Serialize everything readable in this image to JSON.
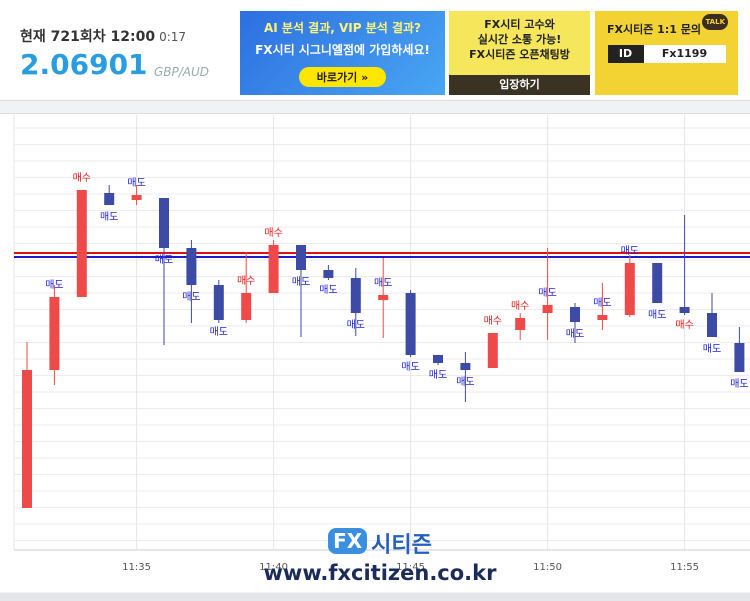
{
  "header": {
    "round": "현재 721회차 12:00",
    "timer": "0:17",
    "price": "2.06901",
    "pair": "GBP/AUD"
  },
  "banners": [
    {
      "lines": [
        "AI 분석 결과, VIP 분석 결과?",
        "FX시티 시그니엘점에 가입하세요!"
      ],
      "button": "바로가기 »"
    },
    {
      "lines": [
        "FX시티 고수와",
        "실시간 소통 가능!",
        "FX시티즌 오픈채팅방"
      ],
      "button": "입장하기"
    },
    {
      "lines": [
        "FX시티즌 1:1 문의"
      ],
      "id_label": "ID",
      "id_value": "Fx1199",
      "badge": "TALK"
    }
  ],
  "watermark": {
    "logo": "FX",
    "name": "시티즌",
    "url": "www.fxcitizen.co.kr"
  },
  "chart_data": {
    "type": "candlestick",
    "categories": [
      null,
      null,
      null,
      null,
      "11:35",
      null,
      null,
      null,
      null,
      "11:40",
      null,
      null,
      null,
      null,
      "11:45",
      null,
      null,
      null,
      null,
      "11:50",
      null,
      null,
      null,
      null,
      "11:55",
      null,
      null
    ],
    "open": [
      42,
      180,
      253,
      357,
      350,
      352,
      302,
      265,
      230,
      257,
      305,
      280,
      272,
      250,
      257,
      195,
      187,
      182,
      220,
      237,
      243,
      230,
      235,
      287,
      243,
      237,
      207
    ],
    "high": [
      208,
      265,
      360,
      365,
      365,
      352,
      310,
      270,
      298,
      310,
      305,
      285,
      282,
      292,
      260,
      195,
      198,
      217,
      237,
      302,
      247,
      267,
      295,
      287,
      335,
      257,
      223
    ],
    "low": [
      42,
      165,
      253,
      345,
      345,
      205,
      227,
      227,
      227,
      257,
      213,
      270,
      214,
      212,
      193,
      185,
      148,
      182,
      210,
      210,
      207,
      220,
      233,
      247,
      235,
      213,
      178
    ],
    "close": [
      180,
      253,
      360,
      345,
      355,
      302,
      265,
      230,
      257,
      305,
      280,
      272,
      237,
      255,
      195,
      187,
      180,
      217,
      232,
      245,
      228,
      235,
      287,
      247,
      237,
      213,
      178
    ],
    "up_color": "#ef4a4a",
    "down_color": "#3d4aa6",
    "signals": [
      null,
      {
        "text": "매도",
        "color": "#2222d8"
      },
      {
        "text": "매수",
        "color": "#e01a1a"
      },
      {
        "text": "매도",
        "color": "#2222d8"
      },
      {
        "text": "매도",
        "color": "#2222d8"
      },
      {
        "text": "매도",
        "color": "#2222d8"
      },
      {
        "text": "매도",
        "color": "#2222d8"
      },
      {
        "text": "매도",
        "color": "#2222d8"
      },
      {
        "text": "매수",
        "color": "#e01a1a"
      },
      {
        "text": "매수",
        "color": "#e01a1a"
      },
      {
        "text": "매도",
        "color": "#2222d8"
      },
      {
        "text": "매도",
        "color": "#2222d8"
      },
      {
        "text": "매도",
        "color": "#2222d8"
      },
      {
        "text": "매도",
        "color": "#2222d8"
      },
      {
        "text": "매도",
        "color": "#2222d8"
      },
      {
        "text": "매도",
        "color": "#2222d8"
      },
      {
        "text": "매도",
        "color": "#2222d8"
      },
      {
        "text": "매수",
        "color": "#e01a1a"
      },
      {
        "text": "매수",
        "color": "#e01a1a"
      },
      {
        "text": "매도",
        "color": "#2222d8"
      },
      {
        "text": "매도",
        "color": "#2222d8"
      },
      {
        "text": "매도",
        "color": "#2222d8"
      },
      {
        "text": "매도",
        "color": "#2222d8"
      },
      {
        "text": "매도",
        "color": "#2222d8"
      },
      {
        "text": "매수",
        "color": "#e01a1a"
      },
      {
        "text": "매도",
        "color": "#2222d8"
      },
      {
        "text": "매도",
        "color": "#2222d8"
      }
    ],
    "reference_lines": [
      {
        "value": 297,
        "color": "#e01010"
      },
      {
        "value": 293,
        "color": "#1a1ac8"
      }
    ],
    "ylim": [
      0,
      435
    ]
  }
}
